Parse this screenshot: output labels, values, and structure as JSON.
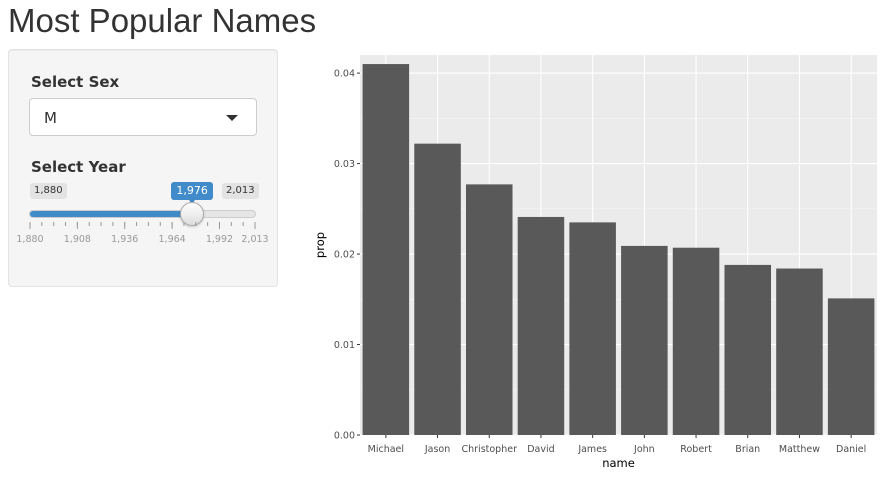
{
  "page": {
    "title": "Most Popular Names"
  },
  "sidebar": {
    "sex": {
      "label": "Select Sex",
      "value": "M"
    },
    "year": {
      "label": "Select Year",
      "min": 1880,
      "max": 2013,
      "value": 1976,
      "min_label": "1,880",
      "max_label": "2,013",
      "value_label": "1,976",
      "ticks": [
        "1,880",
        "1,908",
        "1,936",
        "1,964",
        "1,992",
        "2,013"
      ],
      "tick_values": [
        1880,
        1908,
        1936,
        1964,
        1992,
        2013
      ],
      "accent_color": "#428bca"
    }
  },
  "chart_data": {
    "type": "bar",
    "categories": [
      "Michael",
      "Jason",
      "Christopher",
      "David",
      "James",
      "John",
      "Robert",
      "Brian",
      "Matthew",
      "Daniel"
    ],
    "values": [
      0.041,
      0.0322,
      0.0277,
      0.0241,
      0.0235,
      0.0209,
      0.0207,
      0.0188,
      0.0184,
      0.0151
    ],
    "xlabel": "name",
    "ylabel": "prop",
    "ylim": [
      0,
      0.042
    ],
    "yticks": [
      0.0,
      0.01,
      0.02,
      0.03,
      0.04
    ],
    "ytick_labels": [
      "0.00",
      "0.01",
      "0.02",
      "0.03",
      "0.04"
    ],
    "grid": true,
    "bar_color": "#595959",
    "panel_color": "#ebebeb"
  }
}
